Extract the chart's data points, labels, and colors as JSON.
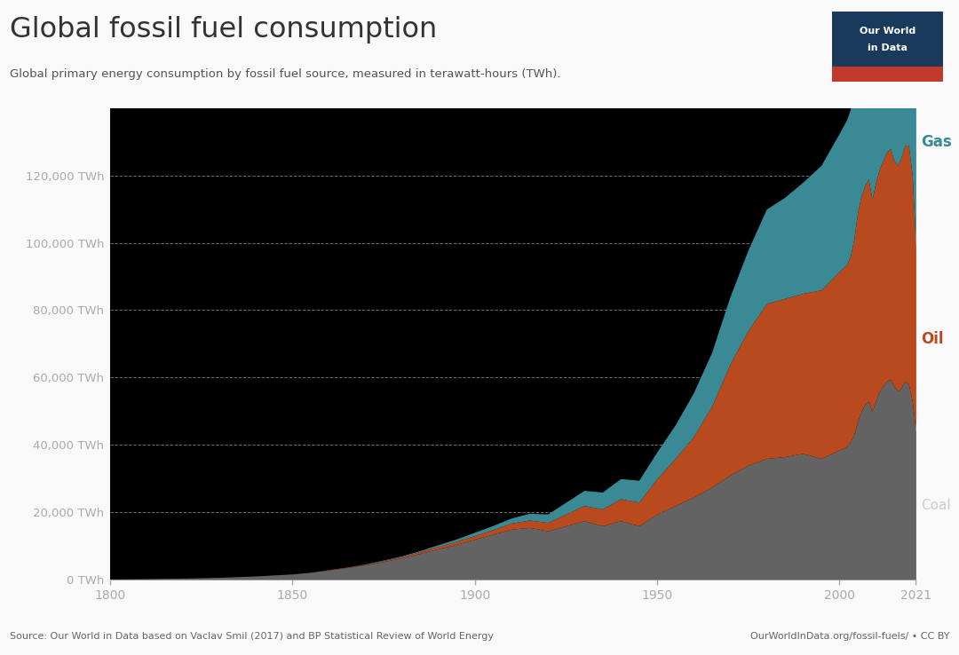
{
  "title": "Global fossil fuel consumption",
  "subtitle": "Global primary energy consumption by fossil fuel source, measured in terawatt-hours (TWh).",
  "source_left": "Source: Our World in Data based on Vaclav Smil (2017) and BP Statistical Review of World Energy",
  "source_right": "OurWorldInData.org/fossil-fuels/ • CC BY",
  "background_color": "#000000",
  "outer_background": "#f9f9f9",
  "title_color": "#333333",
  "subtitle_color": "#555555",
  "source_color": "#666666",
  "ytick_color": "#aaaaaa",
  "grid_color": "#555555",
  "coal_color": "#636363",
  "oil_color": "#b84a1e",
  "gas_color": "#3a8a96",
  "label_coal": "Coal",
  "label_oil": "Oil",
  "label_gas": "Gas",
  "years": [
    1800,
    1805,
    1810,
    1815,
    1820,
    1825,
    1830,
    1835,
    1840,
    1845,
    1850,
    1855,
    1860,
    1865,
    1870,
    1875,
    1880,
    1885,
    1890,
    1895,
    1900,
    1905,
    1910,
    1915,
    1920,
    1925,
    1930,
    1935,
    1940,
    1945,
    1950,
    1955,
    1960,
    1965,
    1970,
    1975,
    1980,
    1985,
    1990,
    1995,
    2000,
    2001,
    2002,
    2003,
    2004,
    2005,
    2006,
    2007,
    2008,
    2009,
    2010,
    2011,
    2012,
    2013,
    2014,
    2015,
    2016,
    2017,
    2018,
    2019,
    2020,
    2021
  ],
  "coal": [
    200,
    250,
    300,
    380,
    460,
    560,
    700,
    900,
    1100,
    1400,
    1700,
    2200,
    2900,
    3600,
    4400,
    5400,
    6500,
    7800,
    9200,
    10500,
    12000,
    13500,
    15000,
    15500,
    14500,
    16000,
    17500,
    16000,
    17500,
    16000,
    19500,
    22000,
    24500,
    27500,
    31000,
    34000,
    36000,
    36500,
    37500,
    36000,
    38500,
    39000,
    39500,
    41000,
    43000,
    47000,
    50000,
    52000,
    53000,
    50000,
    53000,
    56000,
    57500,
    59000,
    59500,
    57500,
    56000,
    57000,
    59000,
    58000,
    53000,
    44000
  ],
  "oil": [
    0,
    0,
    0,
    0,
    0,
    0,
    0,
    0,
    0,
    0,
    0,
    0,
    100,
    150,
    200,
    300,
    400,
    550,
    700,
    900,
    1100,
    1400,
    1800,
    2200,
    2500,
    3500,
    4500,
    5000,
    6500,
    7000,
    10500,
    14000,
    18000,
    24000,
    33000,
    40000,
    46000,
    47000,
    47500,
    50000,
    53000,
    53500,
    54000,
    55000,
    58000,
    62000,
    64000,
    65000,
    66000,
    63000,
    65000,
    66000,
    67000,
    68000,
    68500,
    67000,
    67000,
    68500,
    70000,
    71000,
    67000,
    55000
  ],
  "gas": [
    0,
    0,
    0,
    0,
    0,
    0,
    0,
    0,
    0,
    0,
    0,
    0,
    0,
    0,
    100,
    150,
    200,
    300,
    500,
    700,
    1000,
    1200,
    1500,
    2000,
    2500,
    3500,
    4500,
    5000,
    6000,
    6500,
    8000,
    10000,
    13000,
    16000,
    20000,
    24000,
    28000,
    30000,
    33000,
    37000,
    41000,
    42000,
    43000,
    43500,
    44500,
    46500,
    48000,
    49500,
    50000,
    48500,
    51000,
    53000,
    54000,
    56000,
    57000,
    56000,
    57000,
    59000,
    62000,
    63000,
    61000,
    62000
  ],
  "ylim": [
    0,
    140000
  ],
  "yticks": [
    0,
    20000,
    40000,
    60000,
    80000,
    100000,
    120000
  ],
  "ytick_labels": [
    "0 TWh",
    "20,000 TWh",
    "40,000 TWh",
    "60,000 TWh",
    "80,000 TWh",
    "100,000 TWh",
    "120,000 TWh"
  ],
  "xticks": [
    1800,
    1850,
    1900,
    1950,
    2000,
    2021
  ],
  "xtick_labels": [
    "1800",
    "1850",
    "1900",
    "1950",
    "2000",
    "2021"
  ]
}
